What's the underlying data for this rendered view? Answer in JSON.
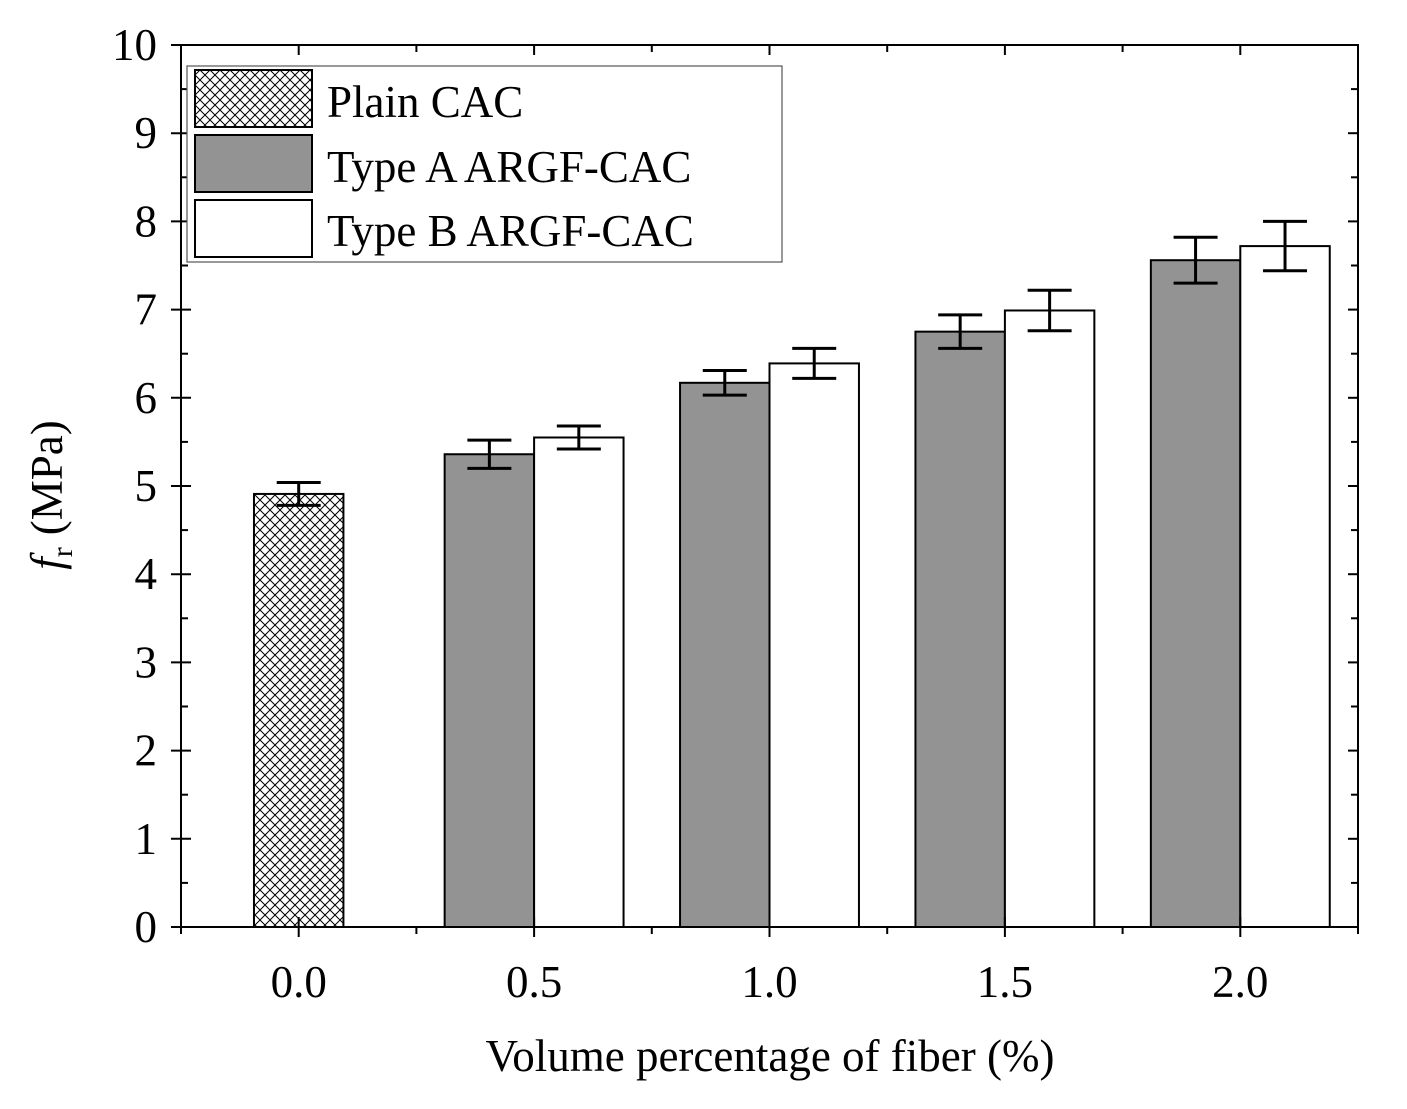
{
  "chart_data": {
    "type": "bar",
    "categories": [
      "0.0",
      "0.5",
      "1.0",
      "1.5",
      "2.0"
    ],
    "x_values": [
      0.0,
      0.5,
      1.0,
      1.5,
      2.0
    ],
    "xlabel": "Volume percentage of fiber (%)",
    "ylabel": {
      "symbol": "f",
      "subscript": "r",
      "unit": "(MPa)"
    },
    "ylim": [
      0,
      10
    ],
    "xlim": [
      -0.25,
      2.25
    ],
    "yticks": [
      0,
      1,
      2,
      3,
      4,
      5,
      6,
      7,
      8,
      9,
      10
    ],
    "grid": false,
    "legend_position": "top-left",
    "series": [
      {
        "name": "Plain CAC",
        "style": "hatched",
        "fill": "#ffffff",
        "values": [
          4.91,
          null,
          null,
          null,
          null
        ],
        "errors": [
          0.13,
          null,
          null,
          null,
          null
        ]
      },
      {
        "name": "Type A ARGF-CAC",
        "style": "solid",
        "fill": "#939393",
        "values": [
          null,
          5.36,
          6.17,
          6.75,
          7.56
        ],
        "errors": [
          null,
          0.16,
          0.14,
          0.19,
          0.26
        ]
      },
      {
        "name": "Type B ARGF-CAC",
        "style": "solid",
        "fill": "#ffffff",
        "values": [
          null,
          5.55,
          6.39,
          6.99,
          7.72
        ],
        "errors": [
          null,
          0.13,
          0.17,
          0.23,
          0.28
        ]
      }
    ]
  }
}
